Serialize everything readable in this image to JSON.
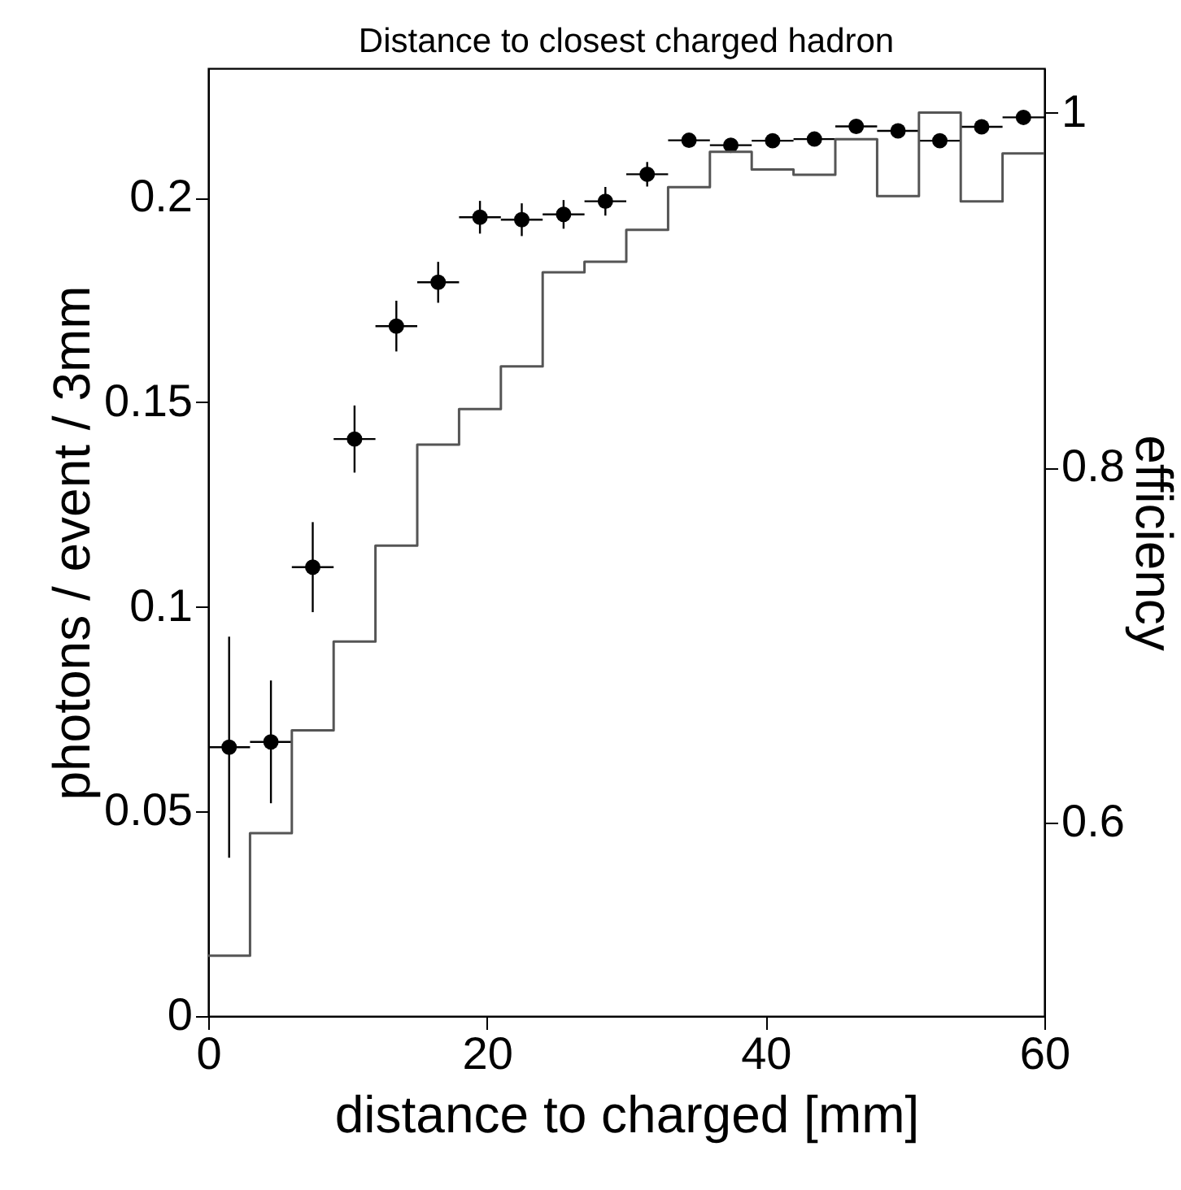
{
  "chart_data": {
    "type": "scatter",
    "title": "Distance to closest charged hadron",
    "xlabel": "distance to charged [mm]",
    "ylabel": "photons / event / 3mm",
    "y2label": "efficiency",
    "xlim": [
      0,
      60
    ],
    "xticks": [
      0,
      20,
      40,
      60
    ],
    "ylim": [
      0,
      0.2316
    ],
    "yticks": [
      0,
      0.05,
      0.1,
      0.15,
      0.2
    ],
    "y2lim": [
      0.491,
      1.025
    ],
    "y2ticks": [
      0.6,
      0.8,
      1
    ],
    "marker": "circle",
    "line_style": "solid",
    "grid": false,
    "series": [
      {
        "type": "scatter",
        "color": "#000000",
        "x": [
          1.5,
          4.5,
          7.5,
          10.5,
          13.5,
          16.5,
          19.5,
          22.5,
          25.5,
          28.5,
          31.5,
          34.5,
          37.5,
          40.5,
          43.5,
          46.5,
          49.5,
          52.5,
          55.5,
          58.5
        ],
        "values": [
          0.0657,
          0.067,
          0.1097,
          0.141,
          0.1686,
          0.1793,
          0.1952,
          0.1946,
          0.1959,
          0.1991,
          0.2057,
          0.214,
          0.2128,
          0.2139,
          0.2143,
          0.2174,
          0.2163,
          0.2139,
          0.2173,
          0.2196
        ],
        "errors": [
          0.027,
          0.015,
          0.011,
          0.0082,
          0.0062,
          0.005,
          0.004,
          0.004,
          0.0035,
          0.0035,
          0.003,
          null,
          null,
          null,
          null,
          null,
          null,
          null,
          null,
          null
        ],
        "xerrors": [
          1.5,
          1.5,
          1.5,
          1.5,
          1.5,
          1.5,
          1.5,
          1.5,
          1.5,
          1.5,
          1.5,
          1.5,
          1.5,
          1.5,
          1.5,
          1.5,
          1.5,
          1.5,
          1.5,
          1.5
        ]
      },
      {
        "type": "histogram",
        "axis": "y2",
        "color": "#555555",
        "bins": [
          0,
          3,
          6,
          9,
          12,
          15,
          18,
          21,
          24,
          27,
          30,
          33,
          36,
          39,
          42,
          45,
          48,
          51,
          54,
          57,
          60
        ],
        "values": [
          0.525,
          0.594,
          0.652,
          0.702,
          0.756,
          0.813,
          0.833,
          0.857,
          0.91,
          0.916,
          0.934,
          0.958,
          0.978,
          0.968,
          0.965,
          0.985,
          0.953,
          1.0,
          0.95,
          0.977
        ]
      }
    ]
  }
}
